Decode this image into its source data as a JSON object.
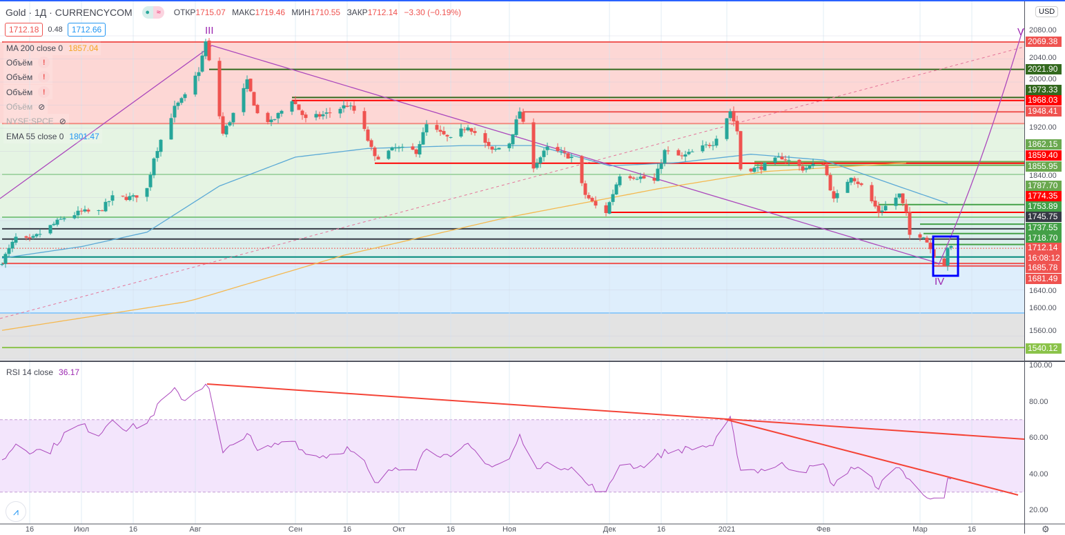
{
  "header": {
    "symbol": "Gold · 1Д · CURRENCYCOM",
    "open_label": "ОТКР",
    "open": "1715.07",
    "high_label": "МАКС",
    "high": "1719.46",
    "low_label": "МИН",
    "low": "1710.55",
    "close_label": "ЗАКР",
    "close": "1712.14",
    "change": "−3.30 (−0.19%)",
    "bid": "1712.18",
    "spread": "0.48",
    "ask": "1712.66"
  },
  "legend": {
    "ma200": "MA 200 close 0",
    "ma200_value": "1857.04",
    "volume1": "Объём",
    "volume2": "Объём",
    "volume3": "Объём",
    "volume4": "Объём",
    "nyse": "NYSE:SPCE",
    "ema55": "EMA 55 close 0",
    "ema55_value": "1801.47",
    "rsi": "RSI 14 close",
    "rsi_value": "36.17"
  },
  "waves": {
    "w3": "III",
    "w4": "IV",
    "w5": "V"
  },
  "currency": "USD",
  "colors": {
    "up": "#26a69a",
    "down": "#ef5350",
    "ema": "#5aa9d6",
    "ma": "#f5b84f",
    "wave": "#9c27b0"
  },
  "price_axis": [
    "2080.00",
    "2040.00",
    "2000.00",
    "1920.00",
    "1840.00",
    "1640.00",
    "1600.00",
    "1560.00"
  ],
  "rsi_axis": [
    "100.00",
    "80.00",
    "60.00",
    "40.00",
    "20.00"
  ],
  "badges": [
    {
      "v": "2069.38",
      "c": "#ef5350"
    },
    {
      "v": "2021.90",
      "c": "#33691e"
    },
    {
      "v": "1973.33",
      "c": "#33691e"
    },
    {
      "v": "1968.03",
      "c": "#ff0000"
    },
    {
      "v": "1948.41",
      "c": "#ef5350"
    },
    {
      "v": "1862.15",
      "c": "#6aa84f"
    },
    {
      "v": "1859.40",
      "c": "#ff0000"
    },
    {
      "v": "1855.95",
      "c": "#6aa84f"
    },
    {
      "v": "1787.70",
      "c": "#6aa84f"
    },
    {
      "v": "1774.35",
      "c": "#ff0000"
    },
    {
      "v": "1753.89",
      "c": "#43a047"
    },
    {
      "v": "1745.75",
      "c": "#363a45"
    },
    {
      "v": "1737.55",
      "c": "#43a047"
    },
    {
      "v": "1718.70",
      "c": "#43a047"
    },
    {
      "v": "1712.14",
      "c": "#ef5350",
      "sub": "16:08:12"
    },
    {
      "v": "1685.78",
      "c": "#ef5350"
    },
    {
      "v": "1681.49",
      "c": "#ef5350"
    },
    {
      "v": "1540.12",
      "c": "#8bc34a"
    }
  ],
  "time_axis": [
    {
      "d": "2020-06-16",
      "t": "16"
    },
    {
      "d": "2020-07-01",
      "t": "Июл"
    },
    {
      "d": "2020-07-16",
      "t": "16"
    },
    {
      "d": "2020-08-03",
      "t": "Авг"
    },
    {
      "d": "2020-09-01",
      "t": "Сен"
    },
    {
      "d": "2020-09-16",
      "t": "16"
    },
    {
      "d": "2020-10-01",
      "t": "Окт"
    },
    {
      "d": "2020-10-16",
      "t": "16"
    },
    {
      "d": "2020-11-02",
      "t": "Ноя"
    },
    {
      "d": "2020-12-01",
      "t": "Дек"
    },
    {
      "d": "2020-12-16",
      "t": "16"
    },
    {
      "d": "2021-01-04",
      "t": "2021"
    },
    {
      "d": "2021-02-01",
      "t": "Фев"
    },
    {
      "d": "2021-03-01",
      "t": "Мар"
    },
    {
      "d": "2021-03-16",
      "t": "16"
    }
  ],
  "chart_data": {
    "type": "candlestick",
    "title": "Gold · 1Д · CURRENCYCOM",
    "closes": [
      [
        "2020-06-08",
        1690
      ],
      [
        "2020-06-12",
        1730
      ],
      [
        "2020-06-16",
        1725
      ],
      [
        "2020-06-22",
        1750
      ],
      [
        "2020-06-26",
        1765
      ],
      [
        "2020-07-01",
        1775
      ],
      [
        "2020-07-06",
        1775
      ],
      [
        "2020-07-10",
        1800
      ],
      [
        "2020-07-16",
        1800
      ],
      [
        "2020-07-20",
        1815
      ],
      [
        "2020-07-22",
        1870
      ],
      [
        "2020-07-24",
        1900
      ],
      [
        "2020-07-28",
        1955
      ],
      [
        "2020-07-31",
        1975
      ],
      [
        "2020-08-04",
        2020
      ],
      [
        "2020-08-06",
        2069
      ],
      [
        "2020-08-07",
        2035
      ],
      [
        "2020-08-11",
        1910
      ],
      [
        "2020-08-14",
        1945
      ],
      [
        "2020-08-18",
        2000
      ],
      [
        "2020-08-21",
        1945
      ],
      [
        "2020-08-25",
        1930
      ],
      [
        "2020-08-31",
        1970
      ],
      [
        "2020-09-04",
        1935
      ],
      [
        "2020-09-10",
        1945
      ],
      [
        "2020-09-16",
        1960
      ],
      [
        "2020-09-18",
        1950
      ],
      [
        "2020-09-21",
        1915
      ],
      [
        "2020-09-24",
        1868
      ],
      [
        "2020-09-30",
        1885
      ],
      [
        "2020-10-06",
        1880
      ],
      [
        "2020-10-09",
        1925
      ],
      [
        "2020-10-16",
        1900
      ],
      [
        "2020-10-21",
        1925
      ],
      [
        "2020-10-28",
        1880
      ],
      [
        "2020-11-02",
        1895
      ],
      [
        "2020-11-05",
        1950
      ],
      [
        "2020-11-09",
        1855
      ],
      [
        "2020-11-13",
        1885
      ],
      [
        "2020-11-20",
        1870
      ],
      [
        "2020-11-24",
        1805
      ],
      [
        "2020-11-27",
        1785
      ],
      [
        "2020-11-30",
        1775
      ],
      [
        "2020-12-04",
        1840
      ],
      [
        "2020-12-10",
        1835
      ],
      [
        "2020-12-14",
        1828
      ],
      [
        "2020-12-17",
        1880
      ],
      [
        "2020-12-22",
        1870
      ],
      [
        "2020-12-31",
        1895
      ],
      [
        "2021-01-05",
        1950
      ],
      [
        "2021-01-07",
        1915
      ],
      [
        "2021-01-08",
        1850
      ],
      [
        "2021-01-13",
        1850
      ],
      [
        "2021-01-20",
        1870
      ],
      [
        "2021-01-26",
        1850
      ],
      [
        "2021-02-01",
        1860
      ],
      [
        "2021-02-04",
        1795
      ],
      [
        "2021-02-09",
        1838
      ],
      [
        "2021-02-12",
        1820
      ],
      [
        "2021-02-17",
        1775
      ],
      [
        "2021-02-23",
        1805
      ],
      [
        "2021-02-25",
        1770
      ],
      [
        "2021-02-26",
        1735
      ],
      [
        "2021-03-02",
        1735
      ],
      [
        "2021-03-05",
        1700
      ],
      [
        "2021-03-08",
        1685
      ],
      [
        "2021-03-09",
        1715
      ],
      [
        "2021-03-10",
        1712
      ]
    ],
    "ema55": [
      [
        "2020-06-08",
        1695
      ],
      [
        "2020-07-01",
        1715
      ],
      [
        "2020-07-20",
        1740
      ],
      [
        "2020-08-10",
        1820
      ],
      [
        "2020-09-01",
        1870
      ],
      [
        "2020-09-22",
        1885
      ],
      [
        "2020-10-20",
        1890
      ],
      [
        "2020-11-10",
        1890
      ],
      [
        "2020-12-01",
        1855
      ],
      [
        "2020-12-20",
        1860
      ],
      [
        "2021-01-11",
        1875
      ],
      [
        "2021-02-01",
        1865
      ],
      [
        "2021-02-20",
        1825
      ],
      [
        "2021-03-09",
        1790
      ]
    ],
    "ma200": [
      [
        "2020-06-08",
        1570
      ],
      [
        "2020-08-01",
        1620
      ],
      [
        "2020-09-15",
        1700
      ],
      [
        "2020-11-01",
        1765
      ],
      [
        "2020-12-15",
        1815
      ],
      [
        "2021-01-15",
        1845
      ],
      [
        "2021-02-25",
        1860
      ]
    ],
    "rsi": [
      [
        "2020-06-08",
        47
      ],
      [
        "2020-06-12",
        57
      ],
      [
        "2020-06-16",
        53
      ],
      [
        "2020-06-22",
        53
      ],
      [
        "2020-06-26",
        62
      ],
      [
        "2020-07-01",
        67
      ],
      [
        "2020-07-06",
        62
      ],
      [
        "2020-07-10",
        71
      ],
      [
        "2020-07-14",
        65
      ],
      [
        "2020-07-20",
        68
      ],
      [
        "2020-07-24",
        80
      ],
      [
        "2020-07-28",
        86
      ],
      [
        "2020-07-31",
        81
      ],
      [
        "2020-08-06",
        90
      ],
      [
        "2020-08-07",
        86
      ],
      [
        "2020-08-11",
        51
      ],
      [
        "2020-08-18",
        63
      ],
      [
        "2020-08-21",
        52
      ],
      [
        "2020-08-31",
        60
      ],
      [
        "2020-09-04",
        51
      ],
      [
        "2020-09-10",
        50
      ],
      [
        "2020-09-16",
        54
      ],
      [
        "2020-09-21",
        46
      ],
      [
        "2020-09-24",
        34
      ],
      [
        "2020-09-30",
        44
      ],
      [
        "2020-10-06",
        44
      ],
      [
        "2020-10-09",
        55
      ],
      [
        "2020-10-16",
        48
      ],
      [
        "2020-10-21",
        56
      ],
      [
        "2020-10-28",
        44
      ],
      [
        "2020-11-02",
        48
      ],
      [
        "2020-11-05",
        61
      ],
      [
        "2020-11-09",
        45
      ],
      [
        "2020-11-20",
        44
      ],
      [
        "2020-11-24",
        35
      ],
      [
        "2020-11-30",
        29
      ],
      [
        "2020-12-04",
        46
      ],
      [
        "2020-12-10",
        44
      ],
      [
        "2020-12-17",
        52
      ],
      [
        "2020-12-31",
        56
      ],
      [
        "2021-01-05",
        70
      ],
      [
        "2021-01-08",
        43
      ],
      [
        "2021-01-13",
        42
      ],
      [
        "2021-01-20",
        45
      ],
      [
        "2021-01-26",
        42
      ],
      [
        "2021-02-01",
        45
      ],
      [
        "2021-02-04",
        33
      ],
      [
        "2021-02-09",
        44
      ],
      [
        "2021-02-12",
        42
      ],
      [
        "2021-02-17",
        33
      ],
      [
        "2021-02-23",
        45
      ],
      [
        "2021-02-25",
        38
      ],
      [
        "2021-03-01",
        30
      ],
      [
        "2021-03-05",
        27
      ],
      [
        "2021-03-08",
        25
      ],
      [
        "2021-03-09",
        37
      ],
      [
        "2021-03-10",
        36
      ]
    ],
    "levels": [
      {
        "p": 2069.38,
        "c": "#ef5350",
        "from": "2020-06-08"
      },
      {
        "p": 2021.9,
        "c": "#33691e",
        "from": "2020-08-07"
      },
      {
        "p": 1973.33,
        "c": "#33691e",
        "from": "2020-08-31"
      },
      {
        "p": 1968.03,
        "c": "#ff0000",
        "from": "2020-08-31"
      },
      {
        "p": 1948.41,
        "c": "#ef5350",
        "from": "2020-11-06"
      },
      {
        "p": 1928,
        "c": "#f28b82",
        "from": "2020-06-08"
      },
      {
        "p": 1862.15,
        "c": "#6aa84f",
        "from": "2021-01-12"
      },
      {
        "p": 1859.4,
        "c": "#ff0000",
        "from": "2020-09-24"
      },
      {
        "p": 1855.95,
        "c": "#6aa84f",
        "from": "2021-01-12"
      },
      {
        "p": 1840,
        "c": "#a5d6a7",
        "from": "2020-06-08"
      },
      {
        "p": 1787.7,
        "c": "#43a047",
        "from": "2021-02-17"
      },
      {
        "p": 1774.35,
        "c": "#ff0000",
        "from": "2020-11-30"
      },
      {
        "p": 1766,
        "c": "#81c784",
        "from": "2020-06-08"
      },
      {
        "p": 1753.89,
        "c": "#43a047",
        "from": "2021-03-01"
      },
      {
        "p": 1745.75,
        "c": "#363a45",
        "from": "2020-06-08"
      },
      {
        "p": 1737.55,
        "c": "#43a047",
        "from": "2021-03-02"
      },
      {
        "p": 1728,
        "c": "#363a45",
        "from": "2020-06-08"
      },
      {
        "p": 1718.7,
        "c": "#43a047",
        "from": "2021-03-04"
      },
      {
        "p": 1697,
        "c": "#00897b",
        "from": "2020-06-08"
      },
      {
        "p": 1685.78,
        "c": "#ef5350",
        "from": "2020-06-08"
      },
      {
        "p": 1681.49,
        "c": "#ef5350",
        "from": "2021-03-05"
      },
      {
        "p": 1540.12,
        "c": "#8bc34a",
        "from": "2020-06-08"
      }
    ],
    "price_range": [
      1520,
      2130
    ],
    "rsi_range": [
      20,
      100
    ],
    "rsi_band": [
      30,
      70
    ]
  }
}
